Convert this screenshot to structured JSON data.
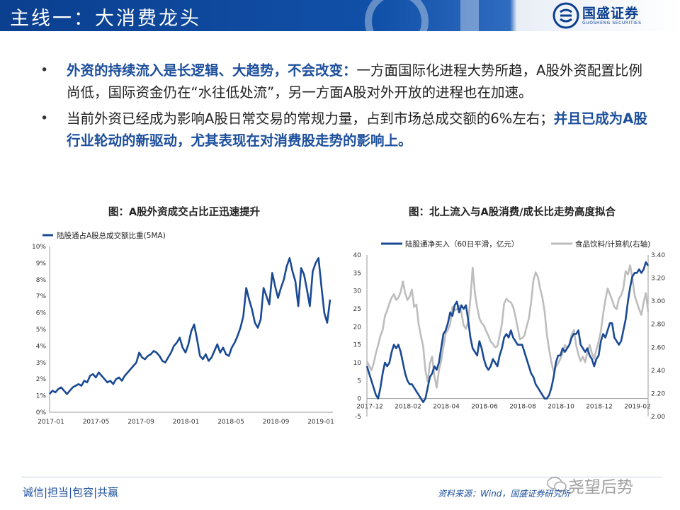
{
  "header": {
    "title": "主线一：大消费龙头",
    "logo_name": "国盛证券",
    "logo_sub": "GUOSHENG SECURITIES"
  },
  "bullets": [
    {
      "emphasis": "外资的持续流入是长逻辑、大趋势，不会改变：",
      "text": "一方面国际化进程大势所趋，A股外资配置比例尚低，国际资金仍在“水往低处流”，另一方面A股对外开放的进程也在加速。"
    },
    {
      "text": "当前外资已经成为影响A股日常交易的常规力量，占到市场总成交额的6%左右；",
      "emphasis": "并且已成为A股行业轮动的新驱动，尤其表现在对消费股走势的影响上。"
    }
  ],
  "chart1_title": "图：A股外资成交占比正迅速提升",
  "chart2_title": "图：北上流入与A股消费/成长比走势高度拟合",
  "colors": {
    "navy": "#0b3f8f",
    "series_blue": "#1a4a94",
    "series_gray": "#bdbdbd"
  },
  "chart_data": [
    {
      "type": "line",
      "legend": [
        "陆股通占A股总成交额比重(5MA)"
      ],
      "y_ticks": [
        "0%",
        "1%",
        "2%",
        "3%",
        "4%",
        "5%",
        "6%",
        "7%",
        "8%",
        "9%",
        "10%"
      ],
      "x_ticks": [
        "2017-01",
        "2017-05",
        "2017-09",
        "2018-01",
        "2018-05",
        "2018-09",
        "2019-01"
      ],
      "ylim": [
        0,
        10
      ],
      "series": [
        {
          "name": "陆股通占A股总成交额比重(5MA)",
          "x": [
            0,
            0.3,
            0.6,
            0.9,
            1.2,
            1.5,
            1.8,
            2.1,
            2.4,
            2.7,
            3.0,
            3.3,
            3.6,
            3.9,
            4.2,
            4.5,
            4.8,
            5.1,
            5.4,
            5.7,
            6.0,
            6.3,
            6.6,
            6.9,
            7.2,
            7.5,
            7.8,
            8.1,
            8.4,
            8.7,
            9.0,
            9.3,
            9.6,
            9.9,
            10.2,
            10.5,
            10.8,
            11.1,
            11.4,
            11.7,
            12.0,
            12.3,
            12.6,
            12.9,
            13.2,
            13.5,
            13.8,
            14.1,
            14.4,
            14.7,
            15.0,
            15.3,
            15.6,
            15.9,
            16.2,
            16.5,
            16.8,
            17.1,
            17.4,
            17.7,
            18.0,
            18.3,
            18.6,
            18.9,
            19.2,
            19.5,
            19.8,
            20.1,
            20.4,
            20.7,
            21.0,
            21.3,
            21.6,
            21.9,
            22.2,
            22.5,
            22.8,
            23.1,
            23.4,
            23.7,
            24.0,
            24.3,
            24.6,
            24.9,
            25.2,
            25.5,
            25.8,
            26.1,
            26.4,
            26.7,
            27.0,
            27.3,
            27.6,
            27.9,
            28.2,
            28.5,
            28.8,
            29.1
          ],
          "values": [
            1.1,
            1.3,
            1.2,
            1.4,
            1.5,
            1.3,
            1.1,
            1.3,
            1.5,
            1.6,
            1.7,
            1.6,
            1.9,
            1.8,
            2.2,
            2.3,
            2.1,
            2.4,
            2.2,
            2.0,
            1.8,
            1.9,
            1.7,
            2.0,
            2.1,
            1.9,
            2.2,
            2.4,
            2.6,
            2.8,
            3.0,
            3.6,
            3.3,
            3.2,
            3.4,
            3.5,
            3.7,
            3.6,
            3.4,
            3.1,
            3.0,
            3.3,
            3.6,
            4.0,
            4.2,
            4.5,
            3.9,
            3.6,
            4.1,
            4.9,
            5.3,
            4.4,
            3.4,
            3.2,
            3.5,
            3.1,
            3.3,
            3.7,
            4.1,
            3.6,
            3.9,
            3.5,
            3.4,
            3.9,
            4.2,
            4.6,
            5.1,
            5.8,
            7.5,
            6.8,
            6.2,
            5.4,
            5.1,
            5.6,
            7.5,
            7.0,
            6.5,
            8.4,
            7.6,
            6.9,
            7.5,
            8.0,
            8.8,
            9.3,
            8.5,
            7.9,
            6.4,
            8.7,
            8.3,
            7.4,
            6.4,
            8.5,
            9.0,
            9.3,
            7.6,
            6.0,
            5.4,
            6.8
          ]
        }
      ]
    },
    {
      "type": "line",
      "legend": [
        "陆股通净买入（60日平滑，亿元）",
        "食品饮料/计算机(右轴)"
      ],
      "y_ticks_left": [
        "-5",
        "0",
        "5",
        "10",
        "15",
        "20",
        "25",
        "30",
        "35",
        "40"
      ],
      "y_ticks_right": [
        "2.00",
        "2.20",
        "2.40",
        "2.60",
        "2.80",
        "3.00",
        "3.20",
        "3.40"
      ],
      "x_ticks": [
        "2017-12",
        "2018-02",
        "2018-04",
        "2018-06",
        "2018-08",
        "2018-10",
        "2018-12",
        "2019-02"
      ],
      "ylim_left": [
        -5,
        40
      ],
      "ylim_right": [
        2.0,
        3.4
      ],
      "series": [
        {
          "name": "陆股通净买入（60日平滑，亿元）",
          "axis": "left",
          "x": [
            0,
            1,
            2,
            3,
            4,
            5,
            6,
            7,
            8,
            9,
            10,
            11,
            12,
            13,
            14,
            15,
            16,
            17,
            18,
            19,
            20,
            21,
            22,
            23,
            24,
            25,
            26,
            27,
            28,
            29,
            30,
            31,
            32,
            33,
            34,
            35,
            36,
            37,
            38,
            39,
            40,
            41,
            42,
            43,
            44,
            45,
            46,
            47,
            48,
            49,
            50,
            51,
            52,
            53,
            54,
            55,
            56,
            57,
            58,
            59,
            60,
            61,
            62,
            63,
            64,
            65,
            66,
            67,
            68,
            69,
            70,
            71,
            72,
            73,
            74,
            75,
            76,
            77,
            78,
            79,
            80,
            81,
            82,
            83,
            84,
            85,
            86,
            87,
            88,
            89,
            90,
            91,
            92,
            93,
            94,
            95,
            96,
            97,
            98,
            99,
            100,
            101,
            102,
            103,
            104,
            105,
            106,
            107,
            108,
            109,
            110,
            111,
            112,
            113,
            114,
            115,
            116,
            117,
            118,
            119,
            120,
            121,
            122,
            123,
            124,
            125
          ],
          "values": [
            9,
            7,
            5,
            3,
            1,
            0,
            3,
            7,
            10,
            9,
            10,
            13,
            15,
            14,
            15,
            13,
            10,
            7,
            5,
            4,
            4,
            3,
            2,
            1,
            0,
            -1,
            0,
            3,
            6,
            7,
            9,
            8,
            10,
            14,
            18,
            19,
            21,
            24,
            23,
            26,
            27,
            24,
            26,
            25,
            26,
            22,
            17,
            14,
            13,
            12,
            16,
            14,
            11,
            9,
            8,
            9,
            11,
            10,
            9,
            12,
            14,
            17,
            18,
            17,
            19,
            17,
            16,
            15,
            15,
            15,
            13,
            11,
            9,
            7,
            6,
            4,
            3,
            2,
            1,
            0,
            0,
            1,
            3,
            6,
            10,
            12,
            12,
            14,
            13,
            14,
            15,
            17,
            18,
            18,
            19,
            15,
            14,
            13,
            14,
            12,
            11,
            9,
            11,
            12,
            16,
            18,
            17,
            19,
            21,
            21,
            17,
            16,
            15,
            16,
            19,
            22,
            27,
            31,
            34,
            35,
            35,
            36,
            35,
            36,
            38,
            37
          ]
        },
        {
          "name": "食品饮料/计算机(右轴)",
          "axis": "right",
          "x": [
            0,
            1,
            2,
            3,
            4,
            5,
            6,
            7,
            8,
            9,
            10,
            11,
            12,
            13,
            14,
            15,
            16,
            17,
            18,
            19,
            20,
            21,
            22,
            23,
            24,
            25,
            26,
            27,
            28,
            29,
            30,
            31,
            32,
            33,
            34,
            35,
            36,
            37,
            38,
            39,
            40,
            41,
            42,
            43,
            44,
            45,
            46,
            47,
            48,
            49,
            50,
            51,
            52,
            53,
            54,
            55,
            56,
            57,
            58,
            59,
            60,
            61,
            62,
            63,
            64,
            65,
            66,
            67,
            68,
            69,
            70,
            71,
            72,
            73,
            74,
            75,
            76,
            77,
            78,
            79,
            80,
            81,
            82,
            83,
            84,
            85,
            86,
            87,
            88,
            89,
            90,
            91,
            92,
            93,
            94,
            95,
            96,
            97,
            98,
            99,
            100,
            101,
            102,
            103,
            104,
            105,
            106,
            107,
            108,
            109,
            110,
            111,
            112,
            113,
            114,
            115,
            116,
            117,
            118,
            119,
            120,
            121,
            122,
            123,
            124,
            125
          ],
          "values": [
            2.48,
            2.44,
            2.4,
            2.46,
            2.55,
            2.62,
            2.7,
            2.75,
            2.87,
            2.92,
            2.98,
            3.03,
            3.06,
            3.01,
            3.03,
            3.08,
            3.17,
            3.07,
            3.01,
            3.04,
            3.1,
            2.95,
            2.97,
            2.8,
            2.7,
            2.61,
            2.4,
            2.3,
            2.46,
            2.52,
            2.35,
            2.25,
            2.4,
            2.48,
            2.6,
            2.72,
            2.75,
            2.8,
            2.95,
            2.92,
            2.93,
            2.96,
            2.9,
            2.79,
            2.76,
            2.82,
            3.02,
            3.29,
            3.07,
            2.95,
            2.85,
            2.81,
            2.79,
            2.74,
            2.7,
            2.65,
            2.63,
            2.6,
            2.61,
            2.7,
            2.8,
            2.98,
            3.02,
            3.0,
            2.99,
            2.95,
            2.87,
            2.77,
            2.67,
            2.68,
            2.7,
            2.78,
            2.85,
            2.99,
            3.18,
            3.25,
            3.21,
            3.11,
            3.03,
            2.91,
            2.71,
            2.58,
            2.47,
            2.39,
            2.43,
            2.46,
            2.5,
            2.55,
            2.62,
            2.59,
            2.62,
            2.71,
            2.75,
            2.62,
            2.54,
            2.48,
            2.52,
            2.47,
            2.56,
            2.62,
            2.55,
            2.5,
            2.58,
            2.65,
            2.74,
            2.89,
            3.01,
            3.11,
            3.06,
            3.01,
            2.95,
            2.93,
            3.02,
            3.05,
            3.11,
            3.26,
            3.23,
            3.31,
            3.2,
            3.05,
            2.99,
            2.93,
            2.88,
            2.99,
            3.07,
            2.91
          ]
        }
      ]
    }
  ],
  "footer": {
    "slogan": "诚信|担当|包容|共赢",
    "source": "资料来源：Wind，国盛证券研究所",
    "watermark": "尧望后势"
  }
}
